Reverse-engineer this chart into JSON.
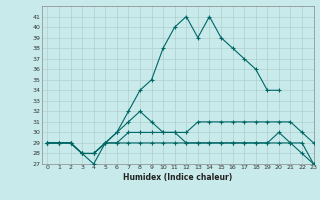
{
  "xlabel": "Humidex (Indice chaleur)",
  "background_color": "#c8eaea",
  "grid_color": "#b0d0d0",
  "line_color": "#006666",
  "xlim": [
    -0.5,
    23
  ],
  "ylim": [
    27,
    42
  ],
  "xticks": [
    0,
    1,
    2,
    3,
    4,
    5,
    6,
    7,
    8,
    9,
    10,
    11,
    12,
    13,
    14,
    15,
    16,
    17,
    18,
    19,
    20,
    21,
    22,
    23
  ],
  "yticks": [
    27,
    28,
    29,
    30,
    31,
    32,
    33,
    34,
    35,
    36,
    37,
    38,
    39,
    40,
    41
  ],
  "lines": [
    {
      "x": [
        0,
        1,
        2,
        3,
        4,
        5,
        6,
        7,
        8,
        9,
        10,
        11,
        12,
        13,
        14,
        15,
        16,
        17,
        18,
        19,
        20
      ],
      "y": [
        29,
        29,
        29,
        28,
        27,
        29,
        30,
        32,
        34,
        35,
        38,
        40,
        41,
        39,
        41,
        39,
        38,
        37,
        36,
        34,
        34
      ]
    },
    {
      "x": [
        0,
        1,
        2,
        3,
        4,
        5,
        6,
        7,
        8,
        9,
        10,
        11,
        12,
        13,
        14,
        15,
        16,
        17,
        18,
        19,
        20,
        21,
        22,
        23
      ],
      "y": [
        29,
        29,
        29,
        28,
        28,
        29,
        30,
        31,
        32,
        31,
        30,
        30,
        30,
        31,
        31,
        31,
        31,
        31,
        31,
        31,
        31,
        31,
        30,
        29
      ]
    },
    {
      "x": [
        0,
        1,
        2,
        3,
        4,
        5,
        6,
        7,
        8,
        9,
        10,
        11,
        12,
        13,
        14,
        15,
        16,
        17,
        18,
        19,
        20,
        21,
        22,
        23
      ],
      "y": [
        29,
        29,
        29,
        28,
        28,
        29,
        29,
        30,
        30,
        30,
        30,
        30,
        29,
        29,
        29,
        29,
        29,
        29,
        29,
        29,
        29,
        29,
        29,
        27
      ]
    },
    {
      "x": [
        0,
        1,
        2,
        3,
        4,
        5,
        6,
        7,
        8,
        9,
        10,
        11,
        12,
        13,
        14,
        15,
        16,
        17,
        18,
        19,
        20,
        21,
        22,
        23
      ],
      "y": [
        29,
        29,
        29,
        28,
        28,
        29,
        29,
        29,
        29,
        29,
        29,
        29,
        29,
        29,
        29,
        29,
        29,
        29,
        29,
        29,
        30,
        29,
        28,
        27
      ]
    }
  ]
}
